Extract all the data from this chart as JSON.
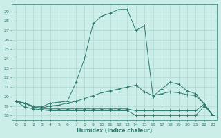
{
  "xlabel": "Humidex (Indice chaleur)",
  "bg_color": "#cceee8",
  "line_color": "#2d7a6e",
  "grid_color": "#b0d8d0",
  "ylim": [
    17.5,
    29.8
  ],
  "xlim": [
    -0.5,
    23.5
  ],
  "yticks": [
    18,
    19,
    20,
    21,
    22,
    23,
    24,
    25,
    26,
    27,
    28,
    29
  ],
  "xticks": [
    0,
    1,
    2,
    3,
    4,
    5,
    6,
    7,
    8,
    9,
    10,
    11,
    12,
    13,
    14,
    15,
    16,
    17,
    18,
    19,
    20,
    21,
    22,
    23
  ],
  "line1": [
    19.5,
    19.3,
    19.0,
    18.9,
    19.3,
    19.4,
    19.5,
    21.5,
    24.0,
    27.7,
    28.5,
    28.8,
    29.2,
    29.2,
    27.0,
    27.5,
    20.0,
    20.8,
    21.5,
    21.3,
    20.6,
    20.3,
    19.2,
    18.0
  ],
  "line2": [
    19.5,
    19.3,
    18.9,
    18.8,
    19.0,
    19.1,
    19.3,
    19.5,
    19.8,
    20.1,
    20.4,
    20.6,
    20.8,
    21.0,
    21.2,
    20.5,
    20.1,
    20.3,
    20.5,
    20.4,
    20.2,
    20.1,
    19.2,
    18.0
  ],
  "line3": [
    19.5,
    19.3,
    18.9,
    18.7,
    18.7,
    18.7,
    18.7,
    18.7,
    18.7,
    18.7,
    18.7,
    18.7,
    18.7,
    18.7,
    18.5,
    18.5,
    18.5,
    18.5,
    18.5,
    18.5,
    18.5,
    18.5,
    19.2,
    18.0
  ],
  "line4": [
    19.5,
    18.9,
    18.7,
    18.6,
    18.5,
    18.5,
    18.5,
    18.5,
    18.5,
    18.5,
    18.5,
    18.5,
    18.5,
    18.5,
    18.0,
    18.0,
    18.0,
    18.0,
    18.0,
    18.0,
    18.0,
    18.0,
    19.0,
    18.0
  ]
}
